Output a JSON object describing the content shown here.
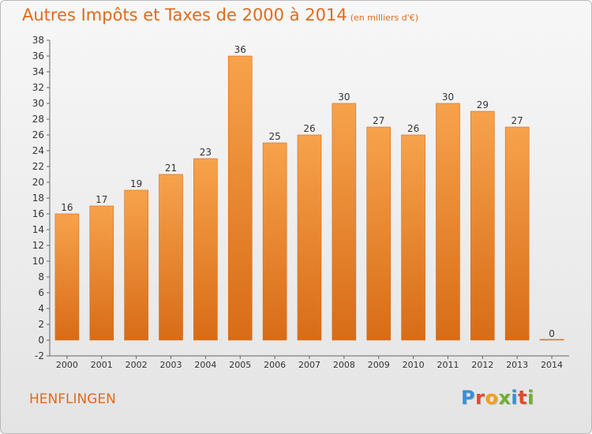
{
  "header": {
    "title": "Autres Impôts et Taxes de 2000 à 2014",
    "unit": "(en milliers d'€)"
  },
  "footer": {
    "location": "HENFLINGEN",
    "brand": "Proxiti"
  },
  "colors": {
    "accent": "#e06a1c",
    "bar_top": "#f7a24c",
    "bar_bottom": "#d86c17",
    "logo_letters": [
      "#3a8fd6",
      "#e04a2a",
      "#f0a020",
      "#70b030",
      "#3a8fd6",
      "#e04a2a",
      "#70b030"
    ]
  },
  "chart_data": {
    "type": "bar",
    "title": "Autres Impôts et Taxes de 2000 à 2014",
    "xlabel": "",
    "ylabel": "",
    "categories": [
      "2000",
      "2001",
      "2002",
      "2003",
      "2004",
      "2005",
      "2006",
      "2007",
      "2008",
      "2009",
      "2010",
      "2011",
      "2012",
      "2013",
      "2014"
    ],
    "values": [
      16,
      17,
      19,
      21,
      23,
      36,
      25,
      26,
      30,
      27,
      26,
      30,
      29,
      27,
      0
    ],
    "ylim": [
      -2,
      38
    ],
    "yticks": [
      -2,
      0,
      2,
      4,
      6,
      8,
      10,
      12,
      14,
      16,
      18,
      20,
      22,
      24,
      26,
      28,
      30,
      32,
      34,
      36,
      38
    ],
    "grid": false,
    "data_labels": true
  }
}
